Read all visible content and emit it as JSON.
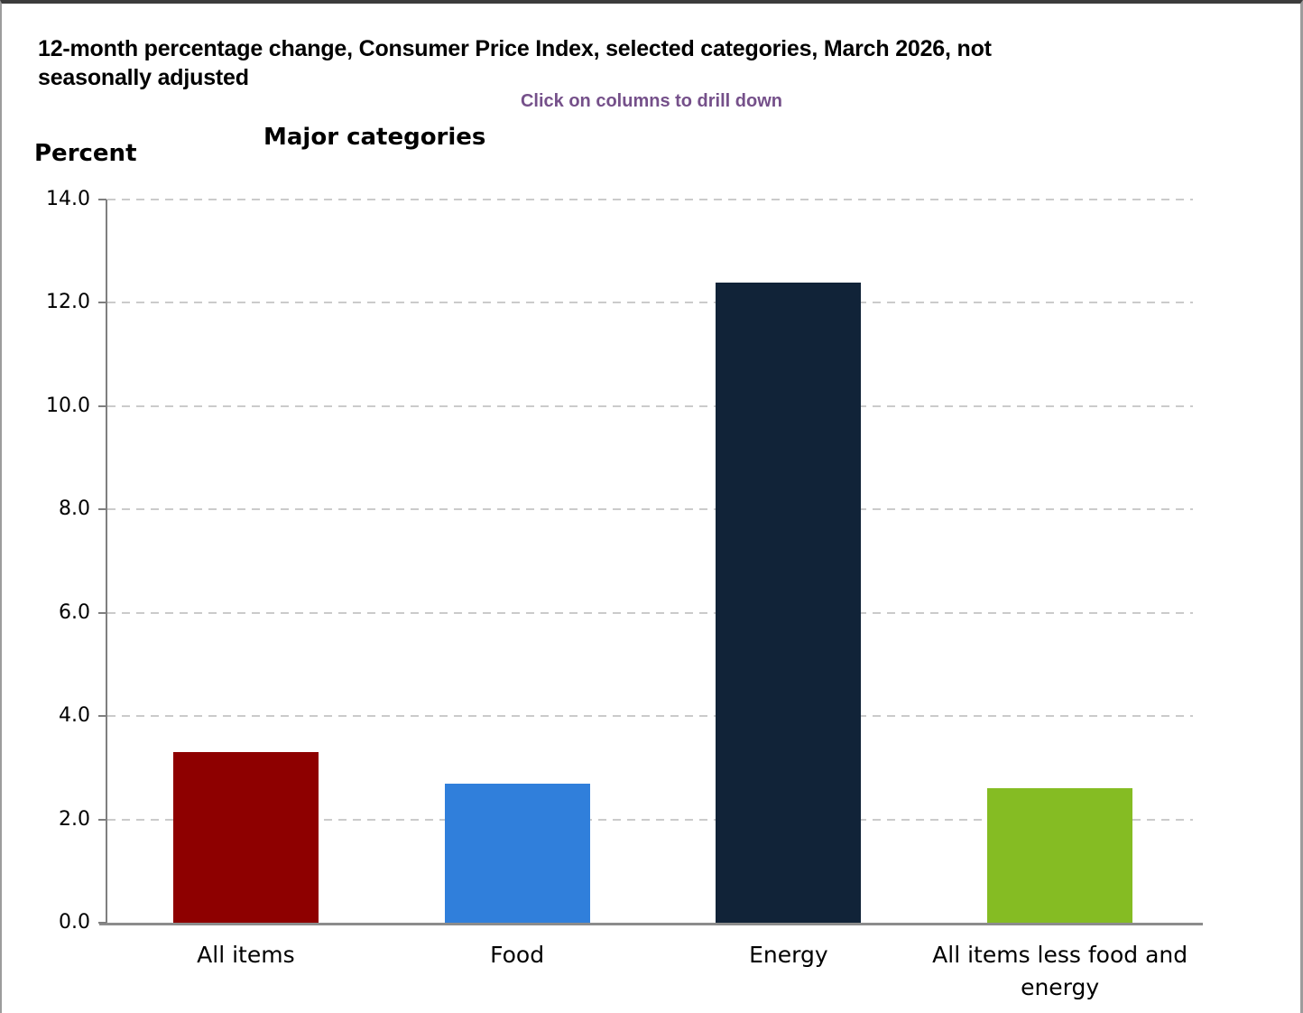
{
  "page": {
    "title": "12-month percentage change, Consumer Price Index, selected categories, March 2026, not\nseasonally adjusted",
    "hint": "Click on columns to drill down",
    "hint_color": "#75508A"
  },
  "chart_data": {
    "type": "bar",
    "title": "Major categories",
    "ylabel": "Percent",
    "categories": [
      "All items",
      "Food",
      "Energy",
      "All items less food and energy"
    ],
    "values": [
      3.3,
      2.7,
      12.4,
      2.6
    ],
    "bar_colors": [
      "#8E0000",
      "#307FDB",
      "#112338",
      "#85BC23"
    ],
    "ylim": [
      0,
      14
    ],
    "ytick_step": 2,
    "ytick_labels": [
      "0.0",
      "2.0",
      "4.0",
      "6.0",
      "8.0",
      "10.0",
      "12.0",
      "14.0"
    ],
    "grid": "horizontal-dashed",
    "grid_color": "#cbcbcb",
    "axis_color": "#7f7f7f",
    "legend": "none",
    "note": "columns are clickable for drill-down"
  }
}
